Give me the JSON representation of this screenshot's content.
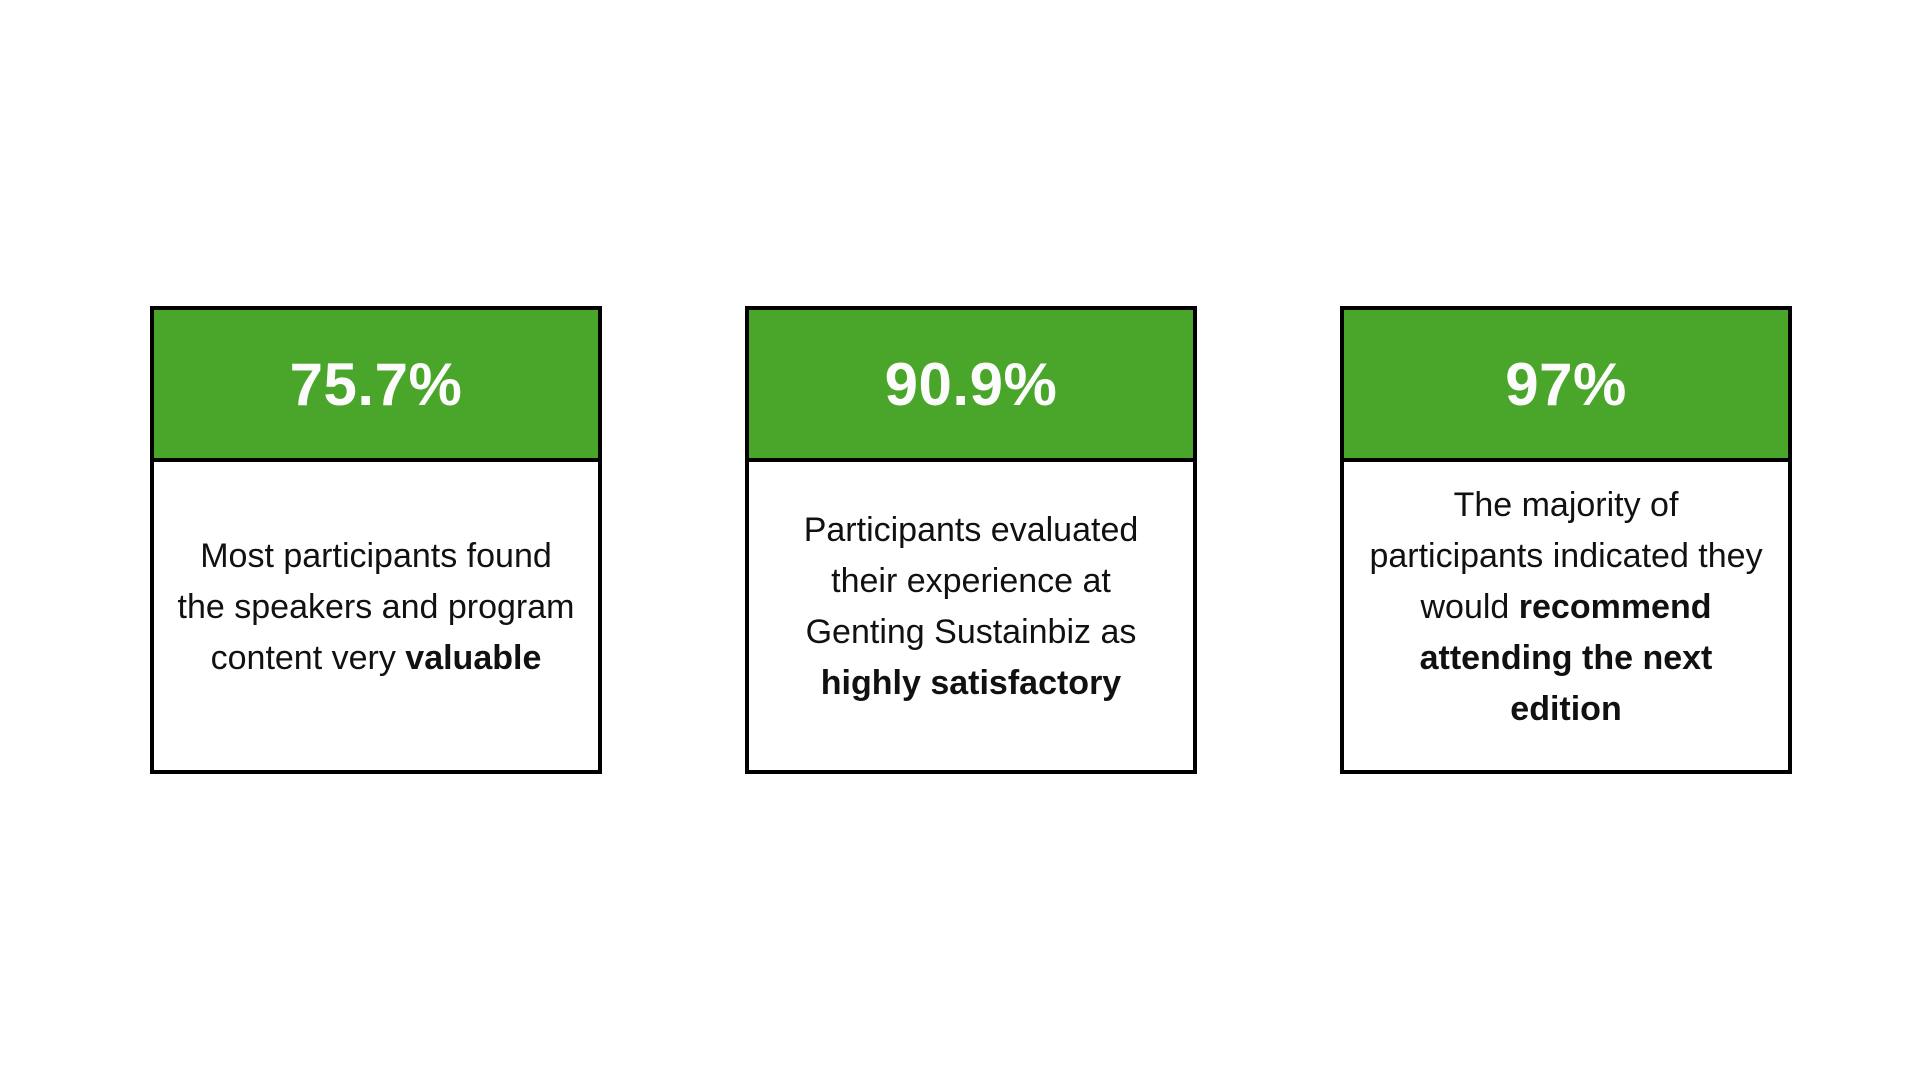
{
  "theme": {
    "page_bg": "#ffffff",
    "header_bg": "#4aa62a",
    "header_text": "#fcfcfc",
    "body_text": "#111111",
    "border": "#000000"
  },
  "cards": [
    {
      "value": "75.7%",
      "description": {
        "regular": "Most participants found the speakers and program content very ",
        "bold": "valuable"
      }
    },
    {
      "value": "90.9%",
      "description": {
        "regular": "Participants evaluated their experience at Genting Sustainbiz as ",
        "bold": "highly satisfactory"
      }
    },
    {
      "value": "97%",
      "description": {
        "regular": "The majority of participants indicated they would ",
        "bold": "recommend attending the next edition"
      }
    }
  ]
}
